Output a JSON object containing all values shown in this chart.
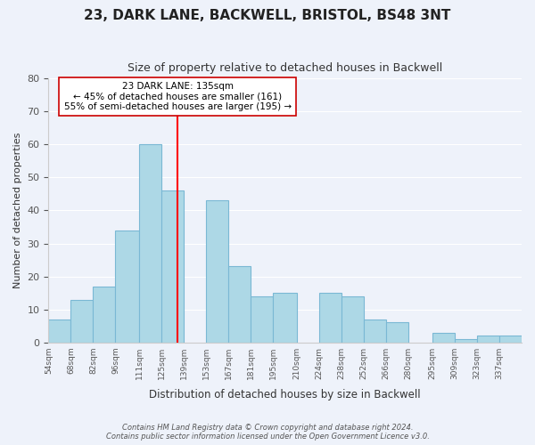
{
  "title": "23, DARK LANE, BACKWELL, BRISTOL, BS48 3NT",
  "subtitle": "Size of property relative to detached houses in Backwell",
  "xlabel": "Distribution of detached houses by size in Backwell",
  "ylabel": "Number of detached properties",
  "bar_color": "#add8e6",
  "bar_edge_color": "#7ab8d4",
  "background_color": "#eef2fa",
  "grid_color": "white",
  "bin_labels": [
    "54sqm",
    "68sqm",
    "82sqm",
    "96sqm",
    "111sqm",
    "125sqm",
    "139sqm",
    "153sqm",
    "167sqm",
    "181sqm",
    "195sqm",
    "210sqm",
    "224sqm",
    "238sqm",
    "252sqm",
    "266sqm",
    "280sqm",
    "295sqm",
    "309sqm",
    "323sqm",
    "337sqm"
  ],
  "bar_heights": [
    7,
    13,
    17,
    34,
    60,
    46,
    0,
    43,
    23,
    14,
    15,
    0,
    15,
    14,
    7,
    6,
    0,
    3,
    1,
    2,
    2
  ],
  "ylim": [
    0,
    80
  ],
  "yticks": [
    0,
    10,
    20,
    30,
    40,
    50,
    60,
    70,
    80
  ],
  "property_line_x": 135,
  "annotation_text": "23 DARK LANE: 135sqm\n← 45% of detached houses are smaller (161)\n55% of semi-detached houses are larger (195) →",
  "annotation_line_color": "red",
  "footer_line1": "Contains HM Land Registry data © Crown copyright and database right 2024.",
  "footer_line2": "Contains public sector information licensed under the Open Government Licence v3.0."
}
